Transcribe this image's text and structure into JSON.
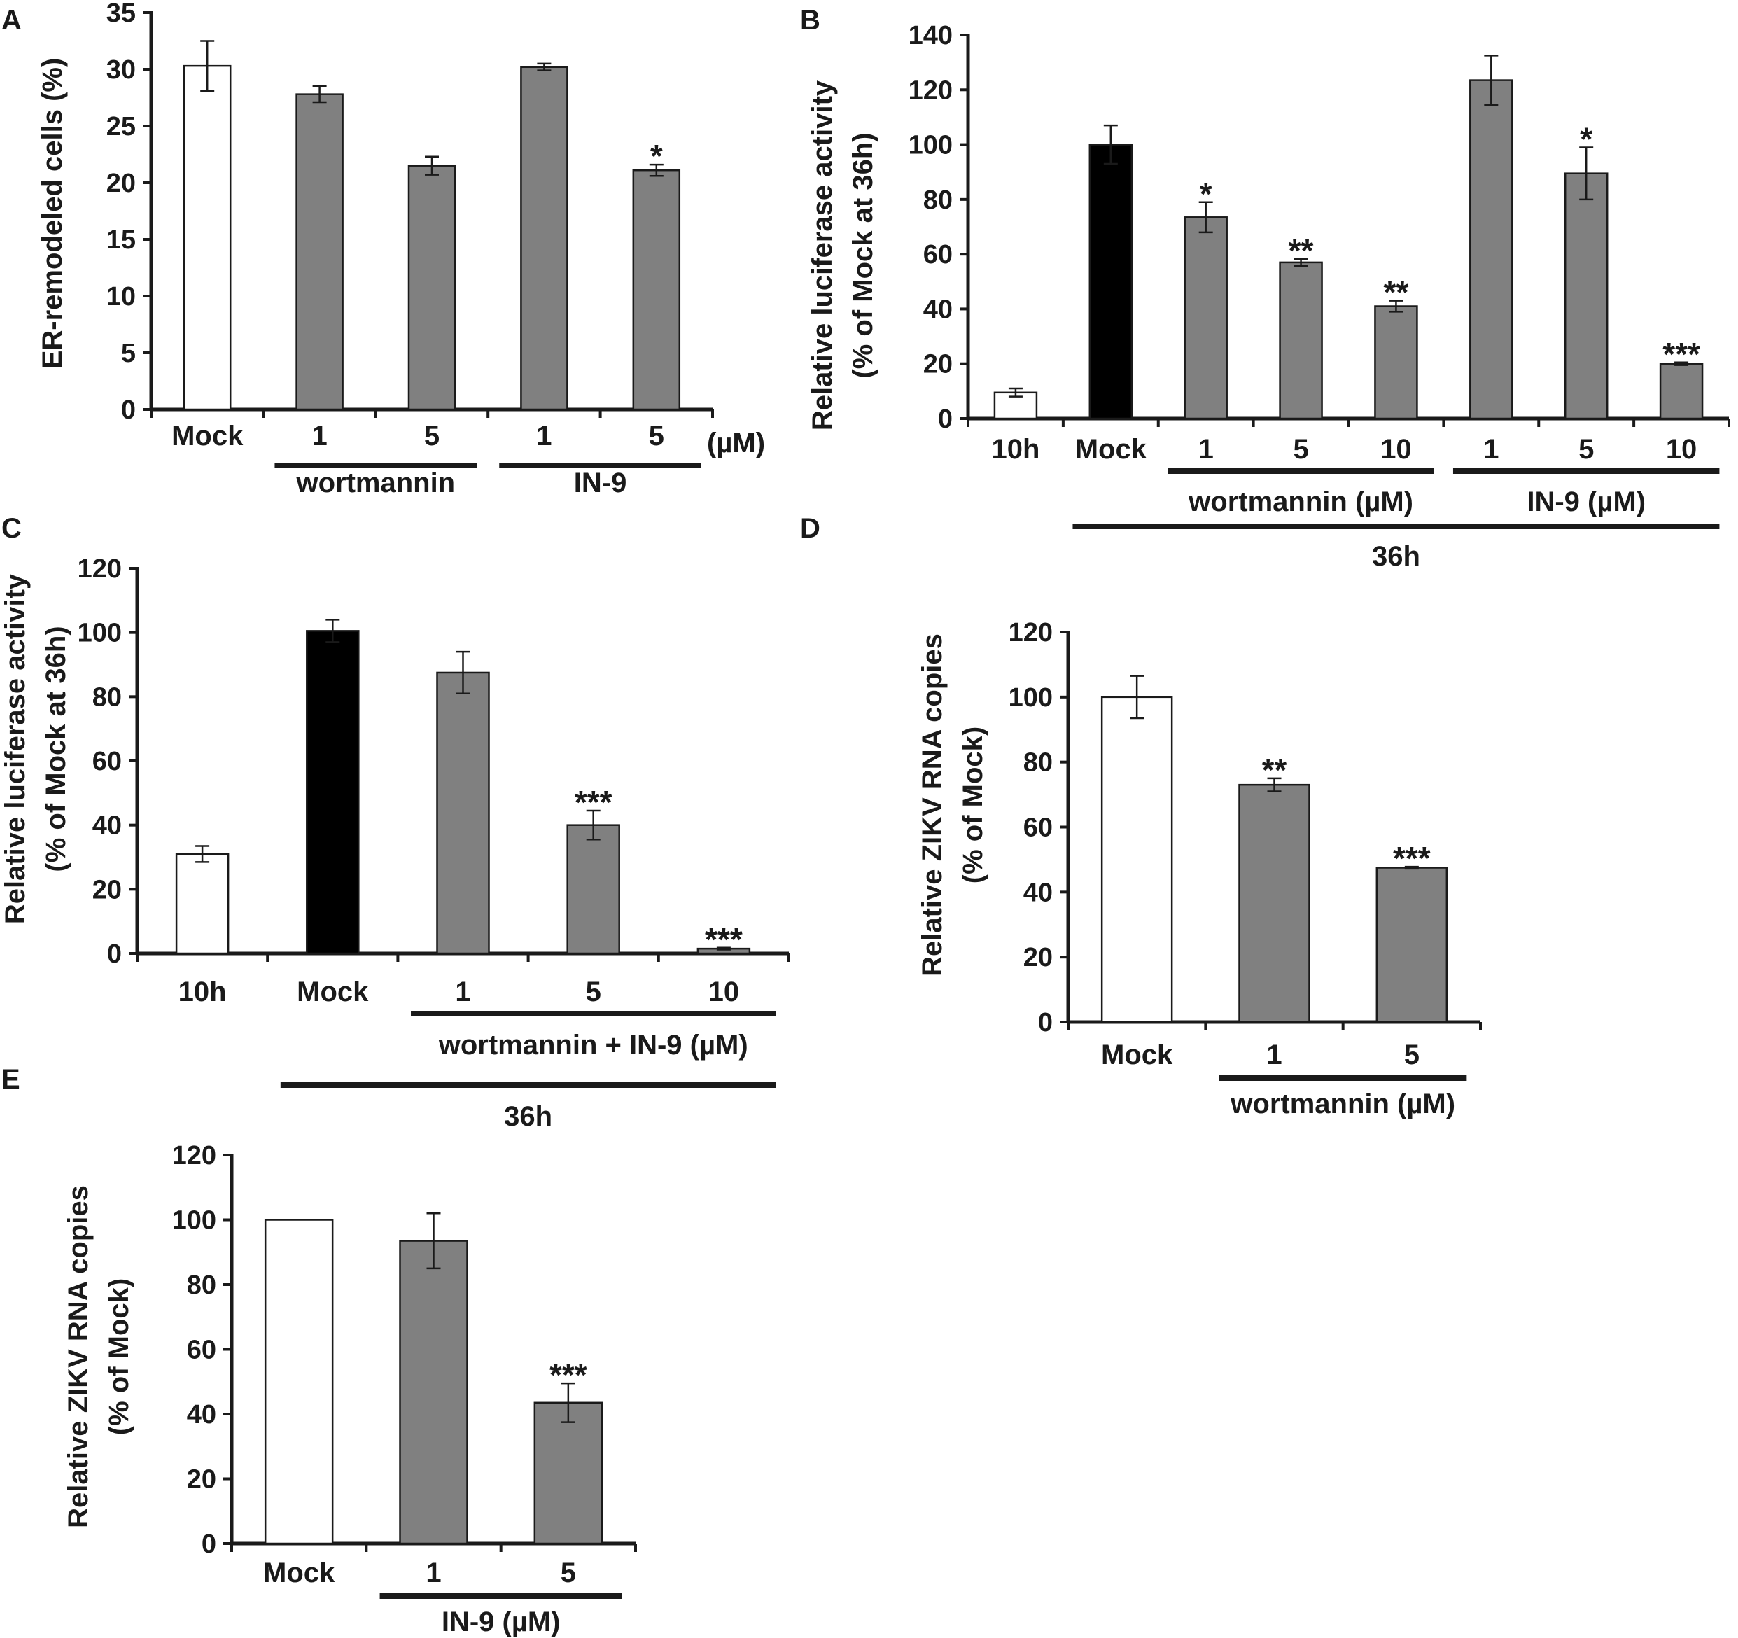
{
  "chart_data": [
    {
      "panel": "A",
      "type": "bar",
      "ylabel": "ER-remodeled cells (%)",
      "ylim": [
        0,
        35
      ],
      "yticks": [
        0,
        5,
        10,
        15,
        20,
        25,
        30,
        35
      ],
      "unit_label": "(µM)",
      "bars": [
        {
          "label": "Mock",
          "value": 30.3,
          "err": 2.2,
          "color": "#ffffff",
          "sig": ""
        },
        {
          "label": "1",
          "value": 27.8,
          "err": 0.7,
          "color": "#808080",
          "sig": ""
        },
        {
          "label": "5",
          "value": 21.5,
          "err": 0.8,
          "color": "#808080",
          "sig": ""
        },
        {
          "label": "1",
          "value": 30.2,
          "err": 0.3,
          "color": "#808080",
          "sig": ""
        },
        {
          "label": "5",
          "value": 21.1,
          "err": 0.5,
          "color": "#808080",
          "sig": "*"
        }
      ],
      "groups": [
        {
          "label": "wortmannin",
          "from": 1,
          "to": 2,
          "level": 1
        },
        {
          "label": "IN-9",
          "from": 3,
          "to": 4,
          "level": 1
        }
      ]
    },
    {
      "panel": "B",
      "type": "bar",
      "ylabel": "Relative luciferase activity\n(% of Mock at 36h)",
      "ylim": [
        0,
        140
      ],
      "yticks": [
        0,
        20,
        40,
        60,
        80,
        100,
        120,
        140
      ],
      "bars": [
        {
          "label": "10h",
          "value": 9.5,
          "err": 1.5,
          "color": "#ffffff",
          "sig": ""
        },
        {
          "label": "Mock",
          "value": 100,
          "err": 7,
          "color": "#000000",
          "sig": ""
        },
        {
          "label": "1",
          "value": 73.5,
          "err": 5.5,
          "color": "#808080",
          "sig": "*"
        },
        {
          "label": "5",
          "value": 57,
          "err": 1.3,
          "color": "#808080",
          "sig": "**"
        },
        {
          "label": "10",
          "value": 41,
          "err": 2,
          "color": "#808080",
          "sig": "**"
        },
        {
          "label": "1",
          "value": 123.5,
          "err": 9,
          "color": "#808080",
          "sig": ""
        },
        {
          "label": "5",
          "value": 89.5,
          "err": 9.5,
          "color": "#808080",
          "sig": "*"
        },
        {
          "label": "10",
          "value": 20,
          "err": 0.5,
          "color": "#808080",
          "sig": "***"
        }
      ],
      "groups": [
        {
          "label": "wortmannin (µM)",
          "from": 2,
          "to": 4,
          "level": 1
        },
        {
          "label": "IN-9 (µM)",
          "from": 5,
          "to": 7,
          "level": 1
        },
        {
          "label": "36h",
          "from": 1,
          "to": 7,
          "level": 2
        }
      ]
    },
    {
      "panel": "C",
      "type": "bar",
      "ylabel": "Relative luciferase activity\n(% of Mock at 36h)",
      "ylim": [
        0,
        120
      ],
      "yticks": [
        0,
        20,
        40,
        60,
        80,
        100,
        120
      ],
      "bars": [
        {
          "label": "10h",
          "value": 31,
          "err": 2.5,
          "color": "#ffffff",
          "sig": ""
        },
        {
          "label": "Mock",
          "value": 100.5,
          "err": 3.5,
          "color": "#000000",
          "sig": ""
        },
        {
          "label": "1",
          "value": 87.5,
          "err": 6.5,
          "color": "#808080",
          "sig": ""
        },
        {
          "label": "5",
          "value": 40,
          "err": 4.5,
          "color": "#808080",
          "sig": "***"
        },
        {
          "label": "10",
          "value": 1.5,
          "err": 0.3,
          "color": "#808080",
          "sig": "***"
        }
      ],
      "groups": [
        {
          "label": "wortmannin + IN-9 (µM)",
          "from": 2,
          "to": 4,
          "level": 1
        },
        {
          "label": "36h",
          "from": 1,
          "to": 4,
          "level": 2
        }
      ]
    },
    {
      "panel": "D",
      "type": "bar",
      "ylabel": "Relative ZIKV RNA copies\n(% of Mock)",
      "ylim": [
        0,
        120
      ],
      "yticks": [
        0,
        20,
        40,
        60,
        80,
        100,
        120
      ],
      "bars": [
        {
          "label": "Mock",
          "value": 100,
          "err": 6.5,
          "color": "#ffffff",
          "sig": ""
        },
        {
          "label": "1",
          "value": 73,
          "err": 2,
          "color": "#808080",
          "sig": "**"
        },
        {
          "label": "5",
          "value": 47.5,
          "err": 0.3,
          "color": "#808080",
          "sig": "***"
        }
      ],
      "groups": [
        {
          "label": "wortmannin (µM)",
          "from": 1,
          "to": 2,
          "level": 1
        }
      ]
    },
    {
      "panel": "E",
      "type": "bar",
      "ylabel": "Relative ZIKV RNA copies\n(% of Mock)",
      "ylim": [
        0,
        120
      ],
      "yticks": [
        0,
        20,
        40,
        60,
        80,
        100,
        120
      ],
      "bars": [
        {
          "label": "Mock",
          "value": 100,
          "err": 0,
          "color": "#ffffff",
          "sig": ""
        },
        {
          "label": "1",
          "value": 93.5,
          "err": 8.5,
          "color": "#808080",
          "sig": ""
        },
        {
          "label": "5",
          "value": 43.5,
          "err": 6,
          "color": "#808080",
          "sig": "***"
        }
      ],
      "groups": [
        {
          "label": "IN-9 (µM)",
          "from": 1,
          "to": 2,
          "level": 1
        }
      ]
    }
  ]
}
